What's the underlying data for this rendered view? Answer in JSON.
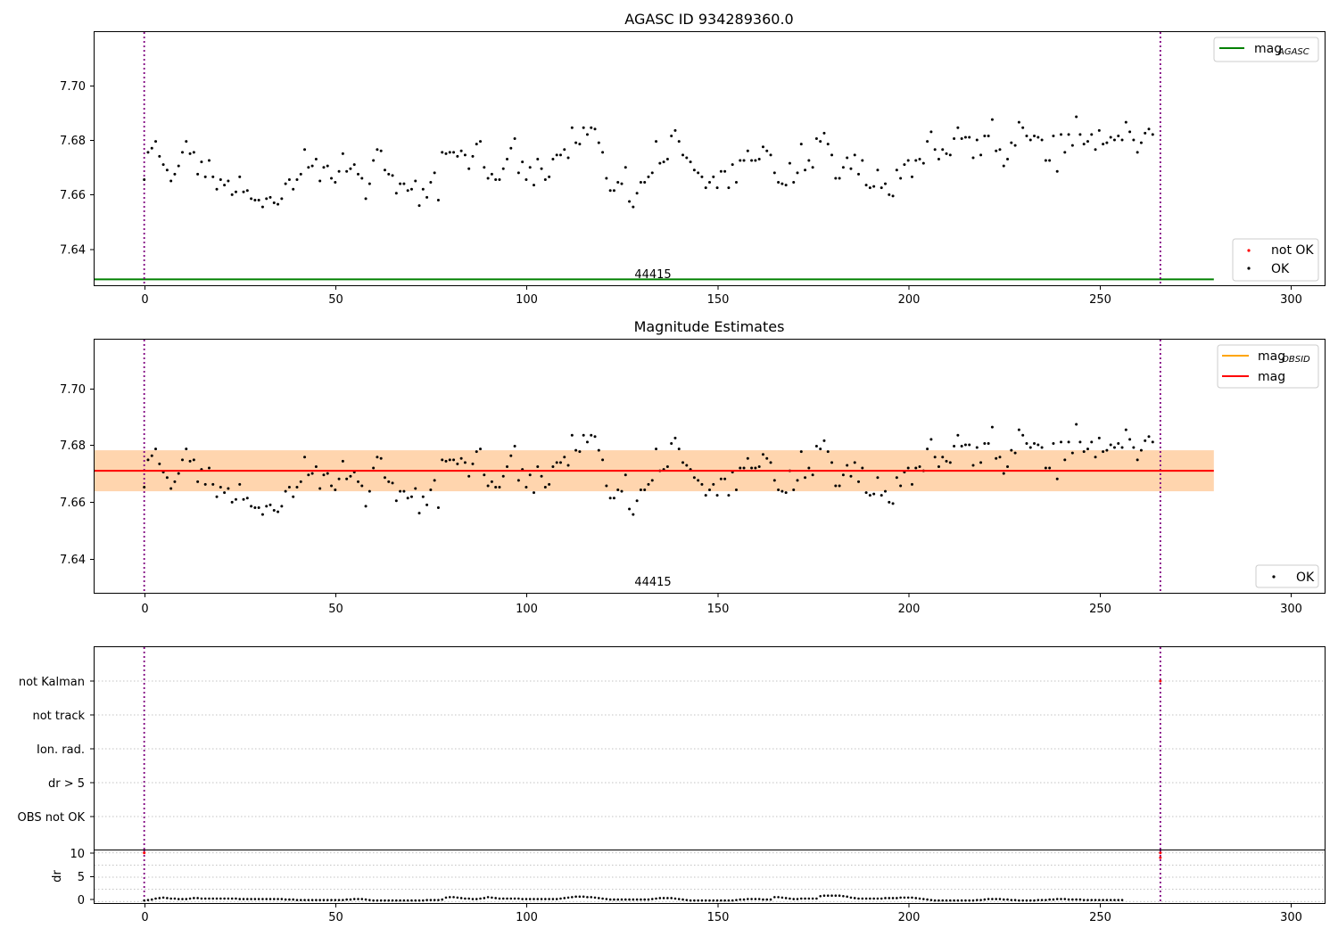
{
  "chart_data": [
    {
      "type": "scatter",
      "title": "AGASC ID 934289360.0",
      "xlim": [
        -13,
        309
      ],
      "ylim": [
        7.6275,
        7.7205
      ],
      "xticks": [
        0,
        50,
        100,
        150,
        200,
        250,
        300
      ],
      "yticks": [
        7.64,
        7.66,
        7.68,
        7.7
      ],
      "ytick_labels": [
        "7.64",
        "7.66",
        "7.68",
        "7.70"
      ],
      "vlines": [
        0,
        266
      ],
      "hline": {
        "name": "mag_AGASC",
        "y": 7.63,
        "x": [
          -13,
          280
        ],
        "color": "#008000"
      },
      "annotation": {
        "text": "44415",
        "x": 133,
        "y": 7.6285
      },
      "legend_top": [
        {
          "label": "mag",
          "sub": "AGASC",
          "color": "#008000"
        }
      ],
      "legend_bottom": [
        {
          "label": "not OK",
          "color": "#ff0000"
        },
        {
          "label": "OK",
          "color": "#000000"
        }
      ],
      "series": [
        {
          "name": "OK",
          "color": "#000000",
          "points_ref": "shared"
        }
      ]
    },
    {
      "type": "scatter",
      "title": "Magnitude Estimates",
      "xlim": [
        -13,
        309
      ],
      "ylim": [
        7.6275,
        7.7205
      ],
      "xticks": [
        0,
        50,
        100,
        150,
        200,
        250,
        300
      ],
      "yticks": [
        7.64,
        7.66,
        7.68,
        7.7
      ],
      "ytick_labels": [
        "7.64",
        "7.66",
        "7.68",
        "7.70"
      ],
      "vlines": [
        0,
        266
      ],
      "mag_line": {
        "y": 7.6725,
        "x": [
          -13,
          280
        ],
        "color": "#ff0000"
      },
      "bands": [
        {
          "y0": 7.665,
          "y1": 7.68,
          "x": [
            -13,
            280
          ],
          "color": "#ffb6c1",
          "opacity": 0.35
        },
        {
          "y0": 7.665,
          "y1": 7.68,
          "x": [
            -13,
            280
          ],
          "color": "#ffa500",
          "opacity": 0.25
        }
      ],
      "annotation": {
        "text": "44415",
        "x": 133,
        "y": 7.6315
      },
      "legend_top": [
        {
          "label": "mag",
          "sub": "OBSID",
          "color": "#ffa500"
        },
        {
          "label": "mag",
          "sub": "",
          "color": "#ff0000"
        }
      ],
      "legend_bottom": [
        {
          "label": "OK",
          "color": "#000000"
        }
      ],
      "series": [
        {
          "name": "OK",
          "color": "#000000",
          "points_ref": "shared"
        }
      ]
    },
    {
      "type": "scatter",
      "title": "",
      "xlim": [
        -13,
        309
      ],
      "categories": [
        "not Kalman",
        "not track",
        "Ion. rad.",
        "dr > 5",
        "OBS not OK"
      ],
      "vlines": [
        0,
        266
      ],
      "flags": [
        {
          "category": "not Kalman",
          "x": 266,
          "color": "#ff0000"
        }
      ]
    },
    {
      "type": "scatter",
      "title": "",
      "xlim": [
        -13,
        309
      ],
      "ylim": [
        -0.5,
        10.5
      ],
      "xticks": [
        0,
        50,
        100,
        150,
        200,
        250,
        300
      ],
      "yticks": [
        0,
        5,
        10
      ],
      "ylabel": "dr",
      "vlines": [
        0,
        266
      ],
      "red_points": [
        {
          "x": 0,
          "y": 10
        },
        {
          "x": 266,
          "y": 10
        },
        {
          "x": 266,
          "y": 9
        }
      ]
    }
  ],
  "points": {
    "x_start": 0,
    "y": [
      7.6665,
      7.6765,
      7.678,
      7.6805,
      7.675,
      7.672,
      7.67,
      7.666,
      7.6685,
      7.6715,
      7.6765,
      7.6805,
      7.676,
      7.6765,
      7.6685,
      7.673,
      7.6675,
      7.6735,
      7.6675,
      7.663,
      7.6665,
      7.6645,
      7.666,
      7.661,
      7.662,
      7.6675,
      7.662,
      7.6625,
      7.6595,
      7.659,
      7.659,
      7.6565,
      7.6595,
      7.66,
      7.658,
      7.6575,
      7.6595,
      7.665,
      7.6665,
      7.663,
      7.6665,
      7.6685,
      7.6775,
      7.671,
      7.6715,
      7.674,
      7.666,
      7.671,
      7.6715,
      7.667,
      7.6655,
      7.6695,
      7.676,
      7.6695,
      7.6705,
      7.672,
      7.6685,
      7.667,
      7.6595,
      7.665,
      7.6735,
      7.6775,
      7.677,
      7.67,
      7.6685,
      7.668,
      7.6615,
      7.665,
      7.665,
      7.6625,
      7.663,
      7.666,
      7.657,
      7.663,
      7.66,
      7.6655,
      7.669,
      7.659,
      7.6765,
      7.676,
      7.6765,
      7.6765,
      7.675,
      7.677,
      7.6755,
      7.6705,
      7.675,
      7.6795,
      7.6805,
      7.671,
      7.667,
      7.6685,
      7.6665,
      7.6665,
      7.6705,
      7.674,
      7.678,
      7.6815,
      7.669,
      7.673,
      7.6665,
      7.671,
      7.6645,
      7.674,
      7.6705,
      7.6665,
      7.6675,
      7.674,
      7.6755,
      7.6755,
      7.6775,
      7.6745,
      7.6855,
      7.68,
      7.6795,
      7.6855,
      7.683,
      7.6855,
      7.685,
      7.68,
      7.6765,
      7.667,
      7.6625,
      7.6625,
      7.6655,
      7.665,
      7.671,
      7.6585,
      7.6565,
      7.6615,
      7.6655,
      7.6655,
      7.6675,
      7.669,
      7.6805,
      7.6725,
      7.673,
      7.674,
      7.6825,
      7.6845,
      7.6805,
      7.6755,
      7.6745,
      7.673,
      7.67,
      7.669,
      7.6675,
      7.6635,
      7.6655,
      7.6675,
      7.6635,
      7.6695,
      7.6695,
      7.6635,
      7.672,
      7.6655,
      7.6735,
      7.6735,
      7.677,
      7.6735,
      7.6735,
      7.674,
      7.6785,
      7.677,
      7.6755,
      7.669,
      7.6655,
      7.665,
      7.6645,
      7.6725,
      7.6655,
      7.669,
      7.6795,
      7.67,
      7.6735,
      7.671,
      7.6815,
      7.6805,
      7.6835,
      7.6795,
      7.6755,
      7.667,
      7.667,
      7.671,
      7.6745,
      7.6705,
      7.6755,
      7.6685,
      7.6735,
      7.6645,
      7.6635,
      7.664,
      7.67,
      7.6635,
      7.665,
      7.661,
      7.6605,
      7.67,
      7.667,
      7.672,
      7.6735,
      7.6675,
      7.6735,
      7.674,
      7.6725,
      7.6805,
      7.684,
      7.6775,
      7.674,
      7.6775,
      7.676,
      7.6755,
      7.6815,
      7.6855,
      7.6815,
      7.682,
      7.682,
      7.6745,
      7.681,
      7.6755,
      7.6825,
      7.6825,
      7.6885,
      7.677,
      7.6775,
      7.6715,
      7.674,
      7.68,
      7.679,
      7.6875,
      7.6855,
      7.6825,
      7.681,
      7.6825,
      7.682,
      7.681,
      7.6735,
      7.6735,
      7.6825,
      7.6695,
      7.683,
      7.6765,
      7.683,
      7.679,
      7.6895,
      7.683,
      7.6795,
      7.6805,
      7.683,
      7.6775,
      7.6845,
      7.6795,
      7.68,
      7.682,
      7.681,
      7.6825,
      7.681,
      7.6875,
      7.684,
      7.681,
      7.6765,
      7.68,
      7.6835,
      7.685,
      7.683
    ],
    "dr": [
      0.2,
      0.3,
      0.4,
      0.6,
      0.7,
      0.8,
      0.7,
      0.6,
      0.6,
      0.5,
      0.5,
      0.5,
      0.6,
      0.7,
      0.7,
      0.6,
      0.6,
      0.6,
      0.6,
      0.6,
      0.6,
      0.6,
      0.6,
      0.6,
      0.6,
      0.5,
      0.5,
      0.5,
      0.5,
      0.5,
      0.5,
      0.5,
      0.5,
      0.5,
      0.5,
      0.5,
      0.5,
      0.4,
      0.4,
      0.4,
      0.3,
      0.3,
      0.3,
      0.3,
      0.3,
      0.3,
      0.3,
      0.3,
      0.3,
      0.3,
      0.3,
      0.3,
      0.3,
      0.4,
      0.4,
      0.5,
      0.5,
      0.5,
      0.4,
      0.3,
      0.2,
      0.2,
      0.2,
      0.2,
      0.2,
      0.2,
      0.2,
      0.2,
      0.2,
      0.2,
      0.2,
      0.2,
      0.2,
      0.2,
      0.3,
      0.3,
      0.3,
      0.3,
      0.4,
      0.8,
      0.9,
      0.9,
      0.8,
      0.7,
      0.6,
      0.6,
      0.5,
      0.5,
      0.6,
      0.7,
      0.9,
      0.8,
      0.7,
      0.6,
      0.6,
      0.6,
      0.6,
      0.6,
      0.6,
      0.5,
      0.5,
      0.5,
      0.5,
      0.5,
      0.5,
      0.5,
      0.5,
      0.5,
      0.5,
      0.6,
      0.7,
      0.8,
      0.9,
      1.0,
      1.0,
      1.0,
      0.9,
      0.9,
      0.8,
      0.7,
      0.6,
      0.5,
      0.4,
      0.4,
      0.4,
      0.4,
      0.4,
      0.4,
      0.4,
      0.4,
      0.4,
      0.4,
      0.4,
      0.5,
      0.6,
      0.7,
      0.7,
      0.7,
      0.7,
      0.6,
      0.5,
      0.4,
      0.3,
      0.2,
      0.2,
      0.2,
      0.2,
      0.2,
      0.2,
      0.2,
      0.2,
      0.2,
      0.2,
      0.2,
      0.2,
      0.3,
      0.4,
      0.4,
      0.5,
      0.5,
      0.5,
      0.5,
      0.4,
      0.4,
      0.4,
      0.9,
      0.9,
      0.8,
      0.7,
      0.6,
      0.5,
      0.5,
      0.6,
      0.6,
      0.6,
      0.6,
      0.6,
      1.1,
      1.2,
      1.2,
      1.2,
      1.2,
      1.2,
      1.1,
      1.0,
      0.8,
      0.7,
      0.6,
      0.6,
      0.6,
      0.6,
      0.6,
      0.6,
      0.6,
      0.7,
      0.7,
      0.7,
      0.7,
      0.8,
      0.8,
      0.8,
      0.8,
      0.7,
      0.6,
      0.5,
      0.4,
      0.3,
      0.2,
      0.2,
      0.2,
      0.2,
      0.2,
      0.2,
      0.2,
      0.2,
      0.2,
      0.2,
      0.2,
      0.3,
      0.3,
      0.4,
      0.5,
      0.5,
      0.5,
      0.5,
      0.4,
      0.4,
      0.3,
      0.3,
      0.2,
      0.2,
      0.2,
      0.2,
      0.2,
      0.3,
      0.3,
      0.3,
      0.4,
      0.4,
      0.5,
      0.5,
      0.5,
      0.4,
      0.4,
      0.4,
      0.4,
      0.3,
      0.3,
      0.3,
      0.3,
      0.3,
      0.3,
      0.3,
      0.3,
      0.3,
      0.3,
      0.3
    ]
  },
  "texts": {
    "title1": "AGASC ID 934289360.0",
    "title2": "Magnitude Estimates",
    "anno": "44415",
    "leg_mag": "mag",
    "leg_agasc": "AGASC",
    "leg_obsid": "OBSID",
    "leg_notok": "not OK",
    "leg_ok": "OK",
    "cat_notkalman": "not Kalman",
    "cat_nottrack": "not track",
    "cat_ionrad": "Ion. rad.",
    "cat_dr5": "dr > 5",
    "cat_obsnotok": "OBS not OK",
    "ylabel_dr": "dr",
    "yt1": "7.64",
    "yt2": "7.66",
    "yt3": "7.68",
    "yt4": "7.70",
    "dr0": "0",
    "dr5": "5",
    "dr10": "10",
    "x0": "0",
    "x50": "50",
    "x100": "100",
    "x150": "150",
    "x200": "200",
    "x250": "250",
    "x300": "300"
  }
}
